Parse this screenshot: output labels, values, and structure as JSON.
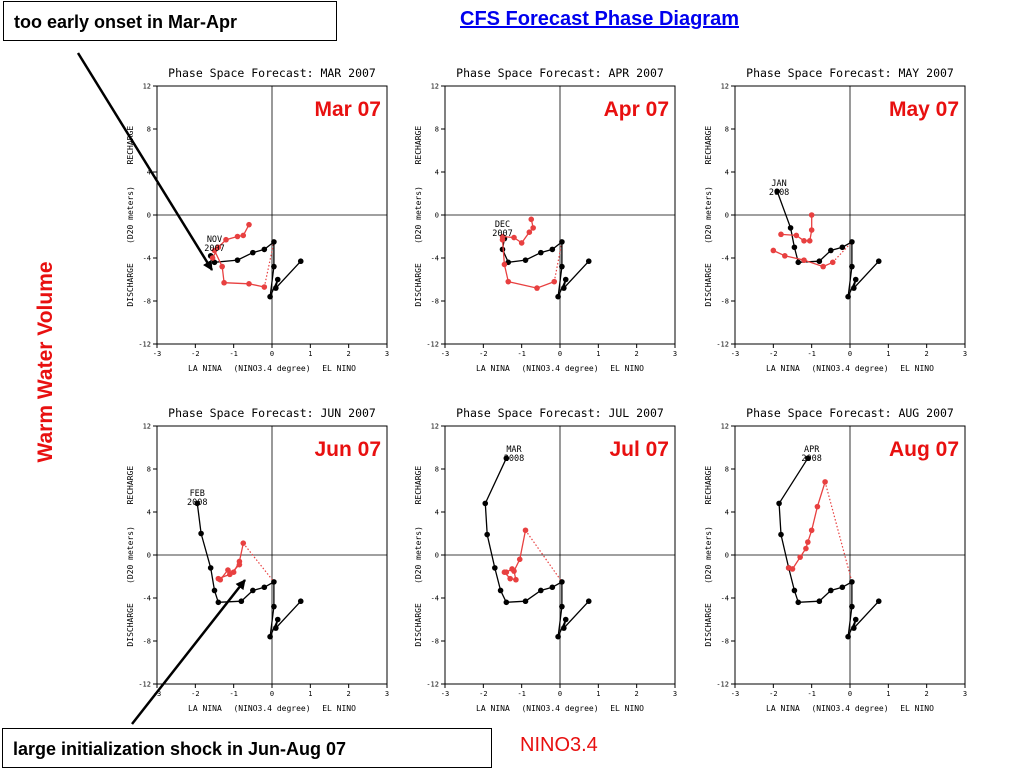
{
  "page": {
    "title": "CFS Forecast Phase Diagram",
    "callout_top": "too early onset in Mar-Apr",
    "callout_bottom": "large initialization shock in Jun-Aug 07",
    "y_label": "Warm Water Volume",
    "x_label": "NINO3.4",
    "colors": {
      "accent": "#e81010",
      "link": "#0000ee",
      "observed": "#000000",
      "forecast": "#e84040"
    }
  },
  "chart_data": [
    {
      "type": "line",
      "title": "Phase Space Forecast: MAR 2007",
      "panel_label": "Mar 07",
      "xlim": [
        -3,
        3
      ],
      "ylim": [
        -12,
        12
      ],
      "xticks": [
        -3,
        -2,
        -1,
        0,
        1,
        2,
        3
      ],
      "yticks": [
        -12,
        -8,
        -4,
        0,
        4,
        8,
        12
      ],
      "xlabel_left": "LA NINA",
      "xlabel": "(NINO3.4 degree)",
      "xlabel_right": "EL NINO",
      "ylabel_top": "RECHARGE",
      "ylabel": "(D20 meters)",
      "ylabel_bottom": "DISCHARGE",
      "series": [
        {
          "role": "observed",
          "points": [
            [
              0.75,
              -4.3
            ],
            [
              0.1,
              -6.8
            ],
            [
              0.15,
              -6.0
            ],
            [
              -0.05,
              -7.6
            ],
            [
              0.05,
              -4.8
            ],
            [
              0.05,
              -2.5
            ],
            [
              -0.2,
              -3.2
            ],
            [
              -0.5,
              -3.5
            ],
            [
              -0.9,
              -4.2
            ],
            [
              -1.5,
              -4.4
            ],
            [
              -1.6,
              -3.8
            ]
          ]
        },
        {
          "role": "forecast",
          "points": [
            [
              -1.5,
              -3.3
            ],
            [
              -1.3,
              -4.8
            ],
            [
              -1.25,
              -6.3
            ],
            [
              -0.6,
              -6.4
            ],
            [
              -0.2,
              -6.7
            ]
          ]
        },
        {
          "role": "forecast",
          "points": [
            [
              -1.55,
              -4.0
            ],
            [
              -1.4,
              -3.0
            ],
            [
              -1.2,
              -2.3
            ],
            [
              -0.9,
              -2.0
            ],
            [
              -0.75,
              -1.9
            ],
            [
              -0.6,
              -0.9
            ]
          ]
        }
      ],
      "annotation": {
        "text": [
          "NOV",
          "2007"
        ],
        "at": [
          -1.5,
          -2.5
        ]
      }
    },
    {
      "type": "line",
      "title": "Phase Space Forecast: APR 2007",
      "panel_label": "Apr 07",
      "xlim": [
        -3,
        3
      ],
      "ylim": [
        -12,
        12
      ],
      "xticks": [
        -3,
        -2,
        -1,
        0,
        1,
        2,
        3
      ],
      "yticks": [
        -12,
        -8,
        -4,
        0,
        4,
        8,
        12
      ],
      "xlabel_left": "LA NINA",
      "xlabel": "(NINO3.4 degree)",
      "xlabel_right": "EL NINO",
      "ylabel_top": "RECHARGE",
      "ylabel": "(D20 meters)",
      "ylabel_bottom": "DISCHARGE",
      "series": [
        {
          "role": "observed",
          "points": [
            [
              0.75,
              -4.3
            ],
            [
              0.1,
              -6.8
            ],
            [
              0.15,
              -6.0
            ],
            [
              -0.05,
              -7.6
            ],
            [
              0.05,
              -4.8
            ],
            [
              0.05,
              -2.5
            ],
            [
              -0.2,
              -3.2
            ],
            [
              -0.5,
              -3.5
            ],
            [
              -0.9,
              -4.2
            ],
            [
              -1.35,
              -4.4
            ],
            [
              -1.5,
              -3.2
            ],
            [
              -1.45,
              -2.2
            ]
          ]
        },
        {
          "role": "forecast",
          "points": [
            [
              -1.5,
              -2.3
            ],
            [
              -1.45,
              -4.6
            ],
            [
              -1.35,
              -6.2
            ],
            [
              -0.6,
              -6.8
            ],
            [
              -0.15,
              -6.2
            ]
          ]
        },
        {
          "role": "forecast",
          "points": [
            [
              -1.5,
              -2.0
            ],
            [
              -1.2,
              -2.1
            ],
            [
              -1.0,
              -2.6
            ],
            [
              -0.8,
              -1.6
            ],
            [
              -0.7,
              -1.2
            ],
            [
              -0.75,
              -0.4
            ]
          ]
        }
      ],
      "annotation": {
        "text": [
          "DEC",
          "2007"
        ],
        "at": [
          -1.5,
          -1.1
        ]
      }
    },
    {
      "type": "line",
      "title": "Phase Space Forecast: MAY 2007",
      "panel_label": "May 07",
      "xlim": [
        -3,
        3
      ],
      "ylim": [
        -12,
        12
      ],
      "xticks": [
        -3,
        -2,
        -1,
        0,
        1,
        2,
        3
      ],
      "yticks": [
        -12,
        -8,
        -4,
        0,
        4,
        8,
        12
      ],
      "xlabel_left": "LA NINA",
      "xlabel": "(NINO3.4 degree)",
      "xlabel_right": "EL NINO",
      "ylabel_top": "RECHARGE",
      "ylabel": "(D20 meters)",
      "ylabel_bottom": "DISCHARGE",
      "series": [
        {
          "role": "observed",
          "points": [
            [
              0.75,
              -4.3
            ],
            [
              0.1,
              -6.8
            ],
            [
              0.15,
              -6.0
            ],
            [
              -0.05,
              -7.6
            ],
            [
              0.05,
              -4.8
            ],
            [
              0.05,
              -2.5
            ],
            [
              -0.2,
              -3.0
            ],
            [
              -0.5,
              -3.3
            ],
            [
              -0.8,
              -4.3
            ],
            [
              -1.35,
              -4.4
            ],
            [
              -1.45,
              -3.0
            ],
            [
              -1.55,
              -1.2
            ],
            [
              -1.9,
              2.2
            ]
          ]
        },
        {
          "role": "forecast",
          "points": [
            [
              -2.0,
              -3.3
            ],
            [
              -1.7,
              -3.8
            ],
            [
              -1.2,
              -4.2
            ],
            [
              -0.7,
              -4.8
            ],
            [
              -0.45,
              -4.4
            ]
          ]
        },
        {
          "role": "forecast",
          "points": [
            [
              -1.8,
              -1.8
            ],
            [
              -1.4,
              -1.9
            ],
            [
              -1.2,
              -2.4
            ],
            [
              -1.05,
              -2.4
            ],
            [
              -1.0,
              -1.4
            ],
            [
              -1.0,
              0.0
            ]
          ]
        }
      ],
      "annotation": {
        "text": [
          "JAN",
          "2008"
        ],
        "at": [
          -1.85,
          2.7
        ]
      }
    },
    {
      "type": "line",
      "title": "Phase Space Forecast: JUN 2007",
      "panel_label": "Jun 07",
      "xlim": [
        -3,
        3
      ],
      "ylim": [
        -12,
        12
      ],
      "xticks": [
        -3,
        -2,
        -1,
        0,
        1,
        2,
        3
      ],
      "yticks": [
        -12,
        -8,
        -4,
        0,
        4,
        8,
        12
      ],
      "xlabel_left": "LA NINA",
      "xlabel": "(NINO3.4 degree)",
      "xlabel_right": "EL NINO",
      "ylabel_top": "RECHARGE",
      "ylabel": "(D20 meters)",
      "ylabel_bottom": "DISCHARGE",
      "series": [
        {
          "role": "observed",
          "points": [
            [
              0.75,
              -4.3
            ],
            [
              0.1,
              -6.8
            ],
            [
              0.15,
              -6.0
            ],
            [
              -0.05,
              -7.6
            ],
            [
              0.05,
              -4.8
            ],
            [
              0.05,
              -2.5
            ],
            [
              -0.2,
              -3.0
            ],
            [
              -0.5,
              -3.3
            ],
            [
              -0.8,
              -4.3
            ],
            [
              -1.4,
              -4.4
            ],
            [
              -1.5,
              -3.3
            ],
            [
              -1.6,
              -1.2
            ],
            [
              -1.85,
              2.0
            ],
            [
              -1.95,
              4.8
            ]
          ]
        },
        {
          "role": "forecast",
          "points": [
            [
              -1.35,
              -2.3
            ],
            [
              -1.15,
              -1.4
            ],
            [
              -1.0,
              -1.6
            ],
            [
              -0.85,
              -0.6
            ],
            [
              -0.75,
              1.1
            ]
          ]
        },
        {
          "role": "forecast",
          "points": [
            [
              -1.4,
              -2.2
            ],
            [
              -1.1,
              -1.8
            ],
            [
              -0.85,
              -0.9
            ]
          ]
        }
      ],
      "annotation": {
        "text": [
          "FEB",
          "2008"
        ],
        "at": [
          -1.95,
          5.5
        ]
      }
    },
    {
      "type": "line",
      "title": "Phase Space Forecast: JUL 2007",
      "panel_label": "Jul 07",
      "xlim": [
        -3,
        3
      ],
      "ylim": [
        -12,
        12
      ],
      "xticks": [
        -3,
        -2,
        -1,
        0,
        1,
        2,
        3
      ],
      "yticks": [
        -12,
        -8,
        -4,
        0,
        4,
        8,
        12
      ],
      "xlabel_left": "LA NINA",
      "xlabel": "(NINO3.4 degree)",
      "xlabel_right": "EL NINO",
      "ylabel_top": "RECHARGE",
      "ylabel": "(D20 meters)",
      "ylabel_bottom": "DISCHARGE",
      "series": [
        {
          "role": "observed",
          "points": [
            [
              0.75,
              -4.3
            ],
            [
              0.1,
              -6.8
            ],
            [
              0.15,
              -6.0
            ],
            [
              -0.05,
              -7.6
            ],
            [
              0.05,
              -4.8
            ],
            [
              0.05,
              -2.5
            ],
            [
              -0.2,
              -3.0
            ],
            [
              -0.5,
              -3.3
            ],
            [
              -0.9,
              -4.3
            ],
            [
              -1.4,
              -4.4
            ],
            [
              -1.55,
              -3.3
            ],
            [
              -1.7,
              -1.2
            ],
            [
              -1.9,
              1.9
            ],
            [
              -1.95,
              4.8
            ],
            [
              -1.4,
              9.0
            ]
          ]
        },
        {
          "role": "forecast",
          "points": [
            [
              -1.45,
              -1.6
            ],
            [
              -1.3,
              -2.2
            ],
            [
              -1.15,
              -2.3
            ],
            [
              -1.2,
              -1.5
            ],
            [
              -1.05,
              -0.4
            ],
            [
              -0.9,
              2.3
            ]
          ]
        },
        {
          "role": "forecast",
          "points": [
            [
              -1.4,
              -1.6
            ],
            [
              -1.25,
              -1.3
            ]
          ]
        }
      ],
      "annotation": {
        "text": [
          "MAR",
          "2008"
        ],
        "at": [
          -1.2,
          9.6
        ]
      }
    },
    {
      "type": "line",
      "title": "Phase Space Forecast: AUG 2007",
      "panel_label": "Aug 07",
      "xlim": [
        -3,
        3
      ],
      "ylim": [
        -12,
        12
      ],
      "xticks": [
        -3,
        -2,
        -1,
        0,
        1,
        2,
        3
      ],
      "yticks": [
        -12,
        -8,
        -4,
        0,
        4,
        8,
        12
      ],
      "xlabel_left": "LA NINA",
      "xlabel": "(NINO3.4 degree)",
      "xlabel_right": "EL NINO",
      "ylabel_top": "RECHARGE",
      "ylabel": "(D20 meters)",
      "ylabel_bottom": "DISCHARGE",
      "series": [
        {
          "role": "observed",
          "points": [
            [
              0.75,
              -4.3
            ],
            [
              0.1,
              -6.8
            ],
            [
              0.15,
              -6.0
            ],
            [
              -0.05,
              -7.6
            ],
            [
              0.05,
              -4.8
            ],
            [
              0.05,
              -2.5
            ],
            [
              -0.2,
              -3.0
            ],
            [
              -0.5,
              -3.3
            ],
            [
              -0.8,
              -4.3
            ],
            [
              -1.35,
              -4.4
            ],
            [
              -1.45,
              -3.3
            ],
            [
              -1.6,
              -1.2
            ],
            [
              -1.8,
              1.9
            ],
            [
              -1.85,
              4.8
            ],
            [
              -1.1,
              9.0
            ]
          ]
        },
        {
          "role": "forecast",
          "points": [
            [
              -1.6,
              -1.2
            ],
            [
              -1.5,
              -1.3
            ],
            [
              -1.3,
              -0.2
            ],
            [
              -1.15,
              0.6
            ],
            [
              -1.1,
              1.2
            ],
            [
              -1.0,
              2.3
            ],
            [
              -0.85,
              4.5
            ],
            [
              -0.65,
              6.8
            ]
          ]
        }
      ],
      "annotation": {
        "text": [
          "APR",
          "2008"
        ],
        "at": [
          -1.0,
          9.6
        ]
      }
    }
  ]
}
